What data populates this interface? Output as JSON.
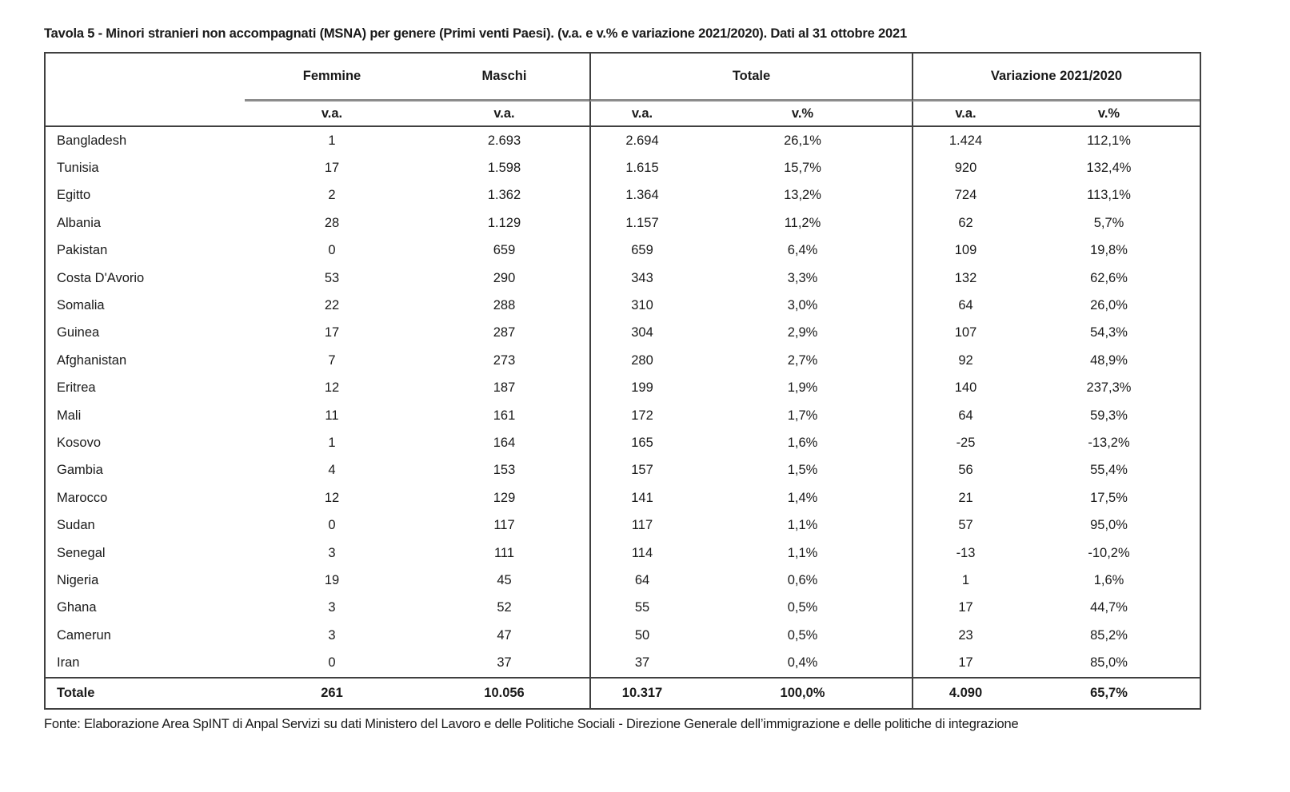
{
  "page": {
    "title": "Tavola 5 - Minori stranieri non accompagnati (MSNA) per genere (Primi venti Paesi). (v.a. e v.% e variazione 2021/2020). Dati al 31 ottobre 2021",
    "source": "Fonte: Elaborazione Area SpINT di Anpal Servizi su dati Ministero del Lavoro e delle Politiche Sociali - Direzione Generale dell’immigrazione e delle politiche di integrazione"
  },
  "colors": {
    "text": "#1a1a1a",
    "border_dark": "#404040",
    "border_gray": "#8c8c8c",
    "background": "#ffffff"
  },
  "table": {
    "groups": {
      "femmine": "Femmine",
      "maschi": "Maschi",
      "totale": "Totale",
      "variazione": "Variazione 2021/2020"
    },
    "subheaders": {
      "femmine_va": "v.a.",
      "maschi_va": "v.a.",
      "totale_va": "v.a.",
      "totale_vp": "v.%",
      "variazione_va": "v.a.",
      "variazione_vp": "v.%"
    },
    "rows": [
      {
        "country": "Bangladesh",
        "femmine_va": "1",
        "maschi_va": "2.693",
        "totale_va": "2.694",
        "totale_vp": "26,1%",
        "var_va": "1.424",
        "var_vp": "112,1%"
      },
      {
        "country": "Tunisia",
        "femmine_va": "17",
        "maschi_va": "1.598",
        "totale_va": "1.615",
        "totale_vp": "15,7%",
        "var_va": "920",
        "var_vp": "132,4%"
      },
      {
        "country": "Egitto",
        "femmine_va": "2",
        "maschi_va": "1.362",
        "totale_va": "1.364",
        "totale_vp": "13,2%",
        "var_va": "724",
        "var_vp": "113,1%"
      },
      {
        "country": "Albania",
        "femmine_va": "28",
        "maschi_va": "1.129",
        "totale_va": "1.157",
        "totale_vp": "11,2%",
        "var_va": "62",
        "var_vp": "5,7%"
      },
      {
        "country": "Pakistan",
        "femmine_va": "0",
        "maschi_va": "659",
        "totale_va": "659",
        "totale_vp": "6,4%",
        "var_va": "109",
        "var_vp": "19,8%"
      },
      {
        "country": "Costa D'Avorio",
        "femmine_va": "53",
        "maschi_va": "290",
        "totale_va": "343",
        "totale_vp": "3,3%",
        "var_va": "132",
        "var_vp": "62,6%"
      },
      {
        "country": "Somalia",
        "femmine_va": "22",
        "maschi_va": "288",
        "totale_va": "310",
        "totale_vp": "3,0%",
        "var_va": "64",
        "var_vp": "26,0%"
      },
      {
        "country": "Guinea",
        "femmine_va": "17",
        "maschi_va": "287",
        "totale_va": "304",
        "totale_vp": "2,9%",
        "var_va": "107",
        "var_vp": "54,3%"
      },
      {
        "country": "Afghanistan",
        "femmine_va": "7",
        "maschi_va": "273",
        "totale_va": "280",
        "totale_vp": "2,7%",
        "var_va": "92",
        "var_vp": "48,9%"
      },
      {
        "country": "Eritrea",
        "femmine_va": "12",
        "maschi_va": "187",
        "totale_va": "199",
        "totale_vp": "1,9%",
        "var_va": "140",
        "var_vp": "237,3%"
      },
      {
        "country": "Mali",
        "femmine_va": "11",
        "maschi_va": "161",
        "totale_va": "172",
        "totale_vp": "1,7%",
        "var_va": "64",
        "var_vp": "59,3%"
      },
      {
        "country": "Kosovo",
        "femmine_va": "1",
        "maschi_va": "164",
        "totale_va": "165",
        "totale_vp": "1,6%",
        "var_va": "-25",
        "var_vp": "-13,2%"
      },
      {
        "country": "Gambia",
        "femmine_va": "4",
        "maschi_va": "153",
        "totale_va": "157",
        "totale_vp": "1,5%",
        "var_va": "56",
        "var_vp": "55,4%"
      },
      {
        "country": "Marocco",
        "femmine_va": "12",
        "maschi_va": "129",
        "totale_va": "141",
        "totale_vp": "1,4%",
        "var_va": "21",
        "var_vp": "17,5%"
      },
      {
        "country": "Sudan",
        "femmine_va": "0",
        "maschi_va": "117",
        "totale_va": "117",
        "totale_vp": "1,1%",
        "var_va": "57",
        "var_vp": "95,0%"
      },
      {
        "country": "Senegal",
        "femmine_va": "3",
        "maschi_va": "111",
        "totale_va": "114",
        "totale_vp": "1,1%",
        "var_va": "-13",
        "var_vp": "-10,2%"
      },
      {
        "country": "Nigeria",
        "femmine_va": "19",
        "maschi_va": "45",
        "totale_va": "64",
        "totale_vp": "0,6%",
        "var_va": "1",
        "var_vp": "1,6%"
      },
      {
        "country": "Ghana",
        "femmine_va": "3",
        "maschi_va": "52",
        "totale_va": "55",
        "totale_vp": "0,5%",
        "var_va": "17",
        "var_vp": "44,7%"
      },
      {
        "country": "Camerun",
        "femmine_va": "3",
        "maschi_va": "47",
        "totale_va": "50",
        "totale_vp": "0,5%",
        "var_va": "23",
        "var_vp": "85,2%"
      },
      {
        "country": "Iran",
        "femmine_va": "0",
        "maschi_va": "37",
        "totale_va": "37",
        "totale_vp": "0,4%",
        "var_va": "17",
        "var_vp": "85,0%"
      }
    ],
    "total_row": {
      "label": "Totale",
      "femmine_va": "261",
      "maschi_va": "10.056",
      "totale_va": "10.317",
      "totale_vp": "100,0%",
      "var_va": "4.090",
      "var_vp": "65,7%"
    }
  }
}
